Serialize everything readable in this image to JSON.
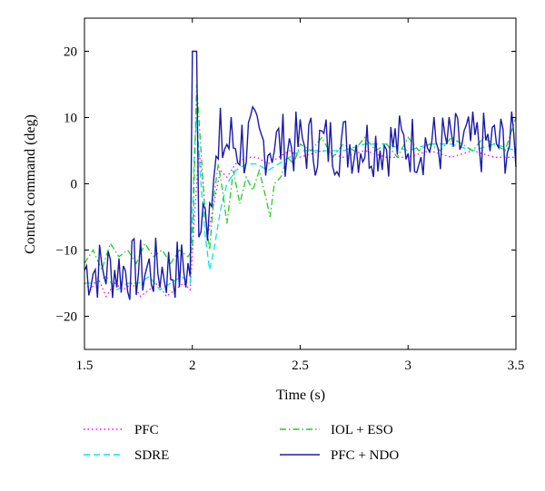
{
  "chart_data": {
    "type": "line",
    "title": "",
    "xlabel": "Time (s)",
    "ylabel": "Control command (deg)",
    "xlim": [
      1.5,
      3.5
    ],
    "ylim": [
      -25,
      25
    ],
    "x_ticks": [
      1.5,
      2,
      2.5,
      3,
      3.5
    ],
    "x_tick_labels": [
      "1.5",
      "2",
      "2.5",
      "3",
      "3.5"
    ],
    "y_ticks": [
      -20,
      -10,
      0,
      10,
      20
    ],
    "y_tick_labels": [
      "−20",
      "−10",
      "0",
      "10",
      "20"
    ],
    "grid": false,
    "legend_position": "bottom",
    "series": [
      {
        "name": "PFC",
        "color": "#ff00ff",
        "dash": "dotted",
        "x": [
          1.5,
          1.53,
          1.56,
          1.6,
          1.64,
          1.68,
          1.72,
          1.76,
          1.8,
          1.84,
          1.88,
          1.92,
          1.96,
          1.99,
          2.01,
          2.03,
          2.05,
          2.07,
          2.1,
          2.13,
          2.16,
          2.2,
          2.25,
          2.3,
          2.35,
          2.4,
          2.45,
          2.5,
          2.6,
          2.7,
          2.8,
          2.9,
          3.0,
          3.1,
          3.2,
          3.3,
          3.4,
          3.5
        ],
        "values": [
          -15,
          -16,
          -14,
          -17,
          -15,
          -16,
          -15,
          -17,
          -16,
          -15,
          -17,
          -16,
          -15,
          -16,
          -5,
          5,
          0,
          -8,
          -3,
          2,
          1,
          3,
          4,
          4,
          3,
          4,
          5,
          4,
          5,
          4,
          5,
          4,
          4,
          5,
          4,
          5,
          4,
          4
        ]
      },
      {
        "name": "SDRE",
        "color": "#00e5ee",
        "dash": "dashed",
        "x": [
          1.5,
          1.55,
          1.6,
          1.65,
          1.7,
          1.75,
          1.8,
          1.85,
          1.9,
          1.95,
          1.99,
          2.01,
          2.02,
          2.04,
          2.06,
          2.08,
          2.1,
          2.13,
          2.16,
          2.2,
          2.25,
          2.3,
          2.35,
          2.4,
          2.45,
          2.5,
          2.6,
          2.7,
          2.8,
          2.9,
          3.0,
          3.1,
          3.2,
          3.3,
          3.4,
          3.5
        ],
        "values": [
          -15,
          -15,
          -14,
          -16,
          -15,
          -15,
          -14,
          -16,
          -15,
          -14,
          -15,
          5,
          10,
          0,
          -8,
          -13,
          -10,
          -4,
          0,
          2,
          3,
          3,
          2,
          3,
          4,
          5,
          5,
          5,
          6,
          6,
          5,
          6,
          6,
          5,
          6,
          5
        ]
      },
      {
        "name": "IOL + ESO",
        "color": "#22cc22",
        "dash": "dashdot",
        "x": [
          1.5,
          1.54,
          1.58,
          1.62,
          1.66,
          1.7,
          1.74,
          1.78,
          1.82,
          1.86,
          1.9,
          1.94,
          1.98,
          2.0,
          2.02,
          2.04,
          2.06,
          2.08,
          2.1,
          2.12,
          2.14,
          2.16,
          2.19,
          2.22,
          2.25,
          2.28,
          2.31,
          2.34,
          2.36,
          2.38,
          2.41,
          2.44,
          2.47,
          2.5,
          2.55,
          2.6,
          2.65,
          2.7,
          2.75,
          2.8,
          2.85,
          2.9,
          2.95,
          3.0,
          3.05,
          3.1,
          3.15,
          3.2,
          3.25,
          3.3,
          3.35,
          3.4,
          3.45,
          3.5
        ],
        "values": [
          -12,
          -10,
          -13,
          -9,
          -11,
          -10,
          -12,
          -9,
          -11,
          -10,
          -12,
          -10,
          -11,
          -10,
          15,
          5,
          -5,
          -10,
          -2,
          3,
          -1,
          -6,
          2,
          -3,
          1,
          -1,
          2,
          -2,
          -5,
          0,
          1,
          4,
          3,
          6,
          5,
          7,
          4,
          6,
          5,
          7,
          5,
          6,
          4,
          7,
          5,
          6,
          5,
          7,
          6,
          5,
          7,
          6,
          5,
          10
        ]
      }
    ],
    "series_extra": {
      "name": "PFC + NDO",
      "color": "#1a1aaa",
      "dash": "solid"
    }
  },
  "legend": {
    "items": [
      {
        "label": "PFC",
        "color": "#ff00ff",
        "dash": "dotted"
      },
      {
        "label": "SDRE",
        "color": "#00e5ee",
        "dash": "dashed"
      },
      {
        "label": "IOL + ESO",
        "color": "#22cc22",
        "dash": "dashdot"
      },
      {
        "label": "PFC + NDO",
        "color": "#1a1aaa",
        "dash": "solid"
      }
    ]
  }
}
